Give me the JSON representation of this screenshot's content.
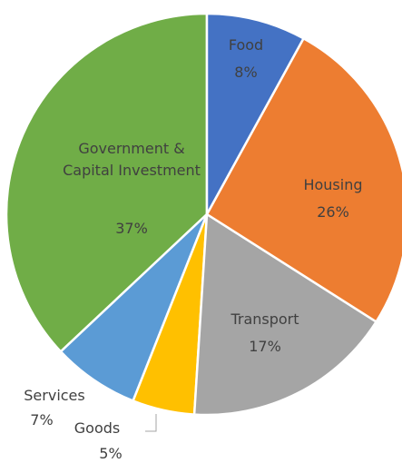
{
  "chart_data": {
    "type": "pie",
    "categories": [
      "Food",
      "Housing",
      "Transport",
      "Goods",
      "Services",
      "Government & Capital Investment"
    ],
    "values": [
      8,
      26,
      17,
      5,
      7,
      37
    ],
    "value_labels": [
      "8%",
      "26%",
      "17%",
      "5%",
      "7%",
      "37%"
    ],
    "colors": [
      "#4472c4",
      "#ed7d31",
      "#a5a5a5",
      "#ffc000",
      "#5b9bd5",
      "#70ad47"
    ]
  }
}
